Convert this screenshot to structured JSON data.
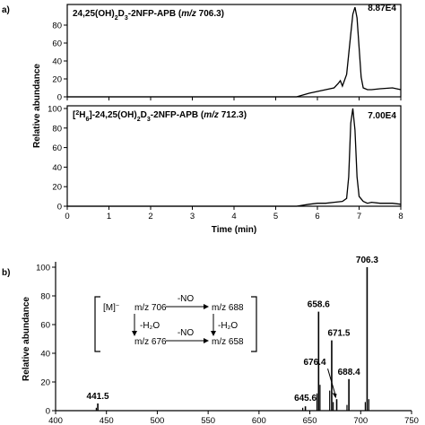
{
  "chart_data": [
    {
      "panel": "a",
      "panel_label": "a)",
      "type": "line",
      "subtype": "chromatogram-pair",
      "xlabel": "Time (min)",
      "ylabel": "Relative abundance",
      "xlim": [
        0,
        8
      ],
      "xticks": [
        "0",
        "1",
        "2",
        "3",
        "4",
        "5",
        "6",
        "7",
        "8"
      ],
      "series": [
        {
          "title": "24,25(OH)₂D₃-2NFP-APB (m/z 706.3)",
          "title_sub": {
            "pre": "24,25(OH)",
            "s1": "2",
            "mid": "D",
            "s2": "3",
            "post": "-2NFP-APB (",
            "mz": "m/z",
            "tail": " 706.3)"
          },
          "peak_intensity": "8.87E4",
          "ylim": [
            0,
            100
          ],
          "yticks": [
            "0",
            "20",
            "40",
            "60",
            "80"
          ],
          "x": [
            0,
            5.5,
            5.8,
            6.0,
            6.2,
            6.4,
            6.5,
            6.55,
            6.6,
            6.7,
            6.8,
            6.85,
            6.9,
            6.95,
            7.0,
            7.05,
            7.1,
            7.2,
            7.3,
            7.5,
            7.8,
            8.0
          ],
          "y": [
            0,
            0,
            4,
            6,
            8,
            10,
            15,
            18,
            12,
            25,
            70,
            92,
            100,
            88,
            55,
            22,
            10,
            8,
            8,
            9,
            10,
            8
          ]
        },
        {
          "title": "[²H₆]-24,25(OH)₂D₃-2NFP-APB (m/z 712.3)",
          "title_sub": {
            "pre": "[",
            "s0": "2",
            "iso": "H",
            "s0b": "6",
            "pre2": "]-24,25(OH)",
            "s1": "2",
            "mid": "D",
            "s2": "3",
            "post": "-2NFP-APB (",
            "mz": "m/z",
            "tail": " 712.3)"
          },
          "peak_intensity": "7.00E4",
          "ylim": [
            0,
            100
          ],
          "yticks": [
            "0",
            "20",
            "40",
            "60",
            "80",
            "100"
          ],
          "x": [
            0,
            5.5,
            5.8,
            6.0,
            6.2,
            6.4,
            6.6,
            6.7,
            6.75,
            6.8,
            6.85,
            6.9,
            6.95,
            7.0,
            7.1,
            7.2,
            7.3,
            7.5,
            7.8,
            8.0
          ],
          "y": [
            0,
            0,
            2,
            3,
            3,
            4,
            5,
            8,
            30,
            85,
            100,
            78,
            30,
            10,
            5,
            3,
            4,
            3,
            3,
            2
          ]
        }
      ]
    },
    {
      "panel": "b",
      "panel_label": "b)",
      "type": "bar",
      "subtype": "mass-spectrum",
      "xlabel": "m/z",
      "ylabel": "Relative abundance",
      "xlim": [
        400,
        750
      ],
      "ylim": [
        0,
        100
      ],
      "xticks": [
        "400",
        "450",
        "500",
        "550",
        "600",
        "650",
        "700",
        "750"
      ],
      "yticks": [
        "0",
        "20",
        "40",
        "60",
        "80",
        "100"
      ],
      "peaks": [
        {
          "mz": 441.5,
          "intensity": 5,
          "label": "441.5"
        },
        {
          "mz": 645.6,
          "intensity": 3,
          "label": "645.6"
        },
        {
          "mz": 658.6,
          "intensity": 69,
          "label": "658.6"
        },
        {
          "mz": 671.5,
          "intensity": 49,
          "label": "671.5"
        },
        {
          "mz": 676.4,
          "intensity": 8,
          "label": "676.4"
        },
        {
          "mz": 688.4,
          "intensity": 22,
          "label": "688.4"
        },
        {
          "mz": 706.3,
          "intensity": 100,
          "label": "706.3"
        }
      ],
      "minor_peaks": [
        {
          "mz": 440.0,
          "intensity": 2
        },
        {
          "mz": 643.0,
          "intensity": 2
        },
        {
          "mz": 657.0,
          "intensity": 12
        },
        {
          "mz": 660.0,
          "intensity": 18
        },
        {
          "mz": 669.5,
          "intensity": 14
        },
        {
          "mz": 673.0,
          "intensity": 6
        },
        {
          "mz": 686.5,
          "intensity": 4
        },
        {
          "mz": 704.5,
          "intensity": 6
        },
        {
          "mz": 708.0,
          "intensity": 8
        }
      ],
      "scheme": {
        "m": "[M]",
        "minus": "−",
        "mz706": "m/z 706",
        "mz688": "m/z 688",
        "mz676": "m/z 676",
        "mz658": "m/z 658",
        "no_top": "-NO",
        "no_bottom": "-NO",
        "h2o_left": "-H₂O",
        "h2o_right": "-H₂O"
      }
    }
  ]
}
